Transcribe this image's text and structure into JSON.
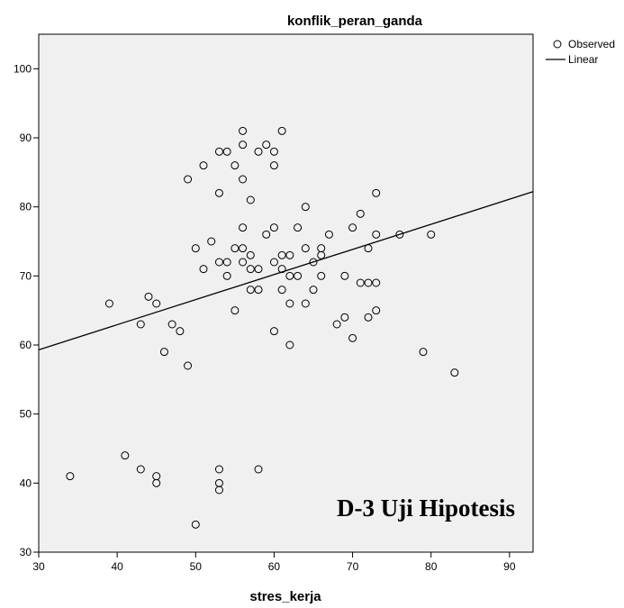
{
  "chart_data": {
    "type": "scatter",
    "title": "konflik_peran_ganda",
    "xlabel": "stres_kerja",
    "ylabel": "",
    "xlim": [
      30,
      93
    ],
    "ylim": [
      30,
      105
    ],
    "xticks": [
      30,
      40,
      50,
      60,
      70,
      80,
      90
    ],
    "yticks": [
      30,
      40,
      50,
      60,
      70,
      80,
      90,
      100
    ],
    "grid": false,
    "legend_position": "top-right",
    "legend": [
      "Observed",
      "Linear"
    ],
    "series": [
      {
        "name": "Observed",
        "points": [
          [
            34,
            41
          ],
          [
            39,
            66
          ],
          [
            41,
            44
          ],
          [
            43,
            63
          ],
          [
            43,
            42
          ],
          [
            44,
            67
          ],
          [
            45,
            66
          ],
          [
            45,
            41
          ],
          [
            45,
            40
          ],
          [
            46,
            59
          ],
          [
            47,
            63
          ],
          [
            48,
            62
          ],
          [
            49,
            84
          ],
          [
            49,
            57
          ],
          [
            50,
            74
          ],
          [
            50,
            34
          ],
          [
            51,
            86
          ],
          [
            51,
            71
          ],
          [
            52,
            75
          ],
          [
            53,
            88
          ],
          [
            53,
            82
          ],
          [
            53,
            72
          ],
          [
            53,
            42
          ],
          [
            53,
            40
          ],
          [
            53,
            39
          ],
          [
            54,
            88
          ],
          [
            54,
            72
          ],
          [
            54,
            70
          ],
          [
            55,
            86
          ],
          [
            55,
            74
          ],
          [
            55,
            65
          ],
          [
            56,
            91
          ],
          [
            56,
            89
          ],
          [
            56,
            84
          ],
          [
            56,
            77
          ],
          [
            56,
            74
          ],
          [
            56,
            72
          ],
          [
            57,
            81
          ],
          [
            57,
            73
          ],
          [
            57,
            71
          ],
          [
            57,
            68
          ],
          [
            58,
            88
          ],
          [
            58,
            71
          ],
          [
            58,
            68
          ],
          [
            58,
            42
          ],
          [
            59,
            89
          ],
          [
            59,
            76
          ],
          [
            60,
            88
          ],
          [
            60,
            86
          ],
          [
            60,
            77
          ],
          [
            60,
            72
          ],
          [
            60,
            62
          ],
          [
            61,
            91
          ],
          [
            61,
            73
          ],
          [
            61,
            71
          ],
          [
            61,
            68
          ],
          [
            62,
            73
          ],
          [
            62,
            70
          ],
          [
            62,
            66
          ],
          [
            62,
            60
          ],
          [
            63,
            77
          ],
          [
            63,
            70
          ],
          [
            64,
            80
          ],
          [
            64,
            74
          ],
          [
            64,
            66
          ],
          [
            65,
            72
          ],
          [
            65,
            68
          ],
          [
            66,
            74
          ],
          [
            66,
            73
          ],
          [
            66,
            70
          ],
          [
            67,
            76
          ],
          [
            68,
            63
          ],
          [
            69,
            70
          ],
          [
            69,
            64
          ],
          [
            70,
            77
          ],
          [
            70,
            61
          ],
          [
            71,
            79
          ],
          [
            71,
            69
          ],
          [
            72,
            74
          ],
          [
            72,
            69
          ],
          [
            72,
            64
          ],
          [
            73,
            82
          ],
          [
            73,
            76
          ],
          [
            73,
            69
          ],
          [
            73,
            65
          ],
          [
            76,
            76
          ],
          [
            79,
            59
          ],
          [
            80,
            76
          ],
          [
            83,
            56
          ]
        ]
      },
      {
        "name": "Linear",
        "line": [
          [
            30,
            59.3
          ],
          [
            93,
            82.2
          ]
        ]
      }
    ],
    "annotations": [
      "D-3 Uji Hipotesis"
    ]
  }
}
